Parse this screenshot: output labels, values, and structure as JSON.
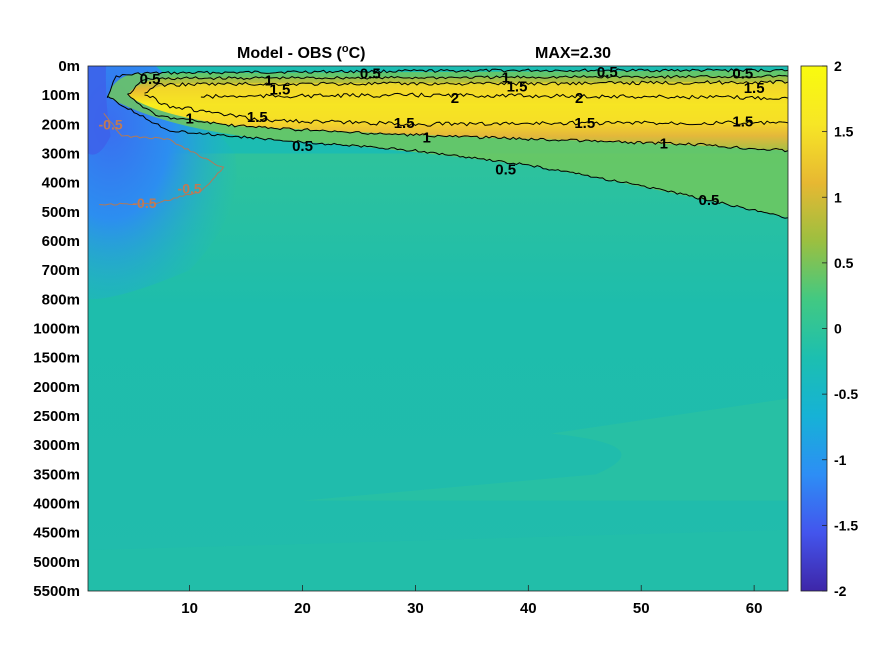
{
  "chart_data": {
    "type": "heatmap",
    "title": "Model - OBS (",
    "title_unit_sup": "o",
    "title_unit_tail": "C)",
    "max_label": "MAX=2.30",
    "xlabel": "",
    "ylabel": "",
    "x_ticks": [
      "10",
      "20",
      "30",
      "40",
      "50",
      "60"
    ],
    "x_tick_values": [
      10,
      20,
      30,
      40,
      50,
      60
    ],
    "xlim": [
      1,
      63
    ],
    "y_ticks": [
      "0m",
      "100m",
      "200m",
      "300m",
      "400m",
      "500m",
      "600m",
      "700m",
      "800m",
      "1000m",
      "1500m",
      "2000m",
      "2500m",
      "3000m",
      "3500m",
      "4000m",
      "4500m",
      "5000m",
      "5500m"
    ],
    "colorbar": {
      "ticks": [
        "2",
        "1.5",
        "1",
        "0.5",
        "0",
        "-0.5",
        "-1",
        "-1.5",
        "-2"
      ],
      "tick_values": [
        2,
        1.5,
        1,
        0.5,
        0,
        -0.5,
        -1,
        -1.5,
        -2
      ],
      "range": [
        -2,
        2
      ],
      "colors": [
        "#3e26a8",
        "#4355ed",
        "#2d8ef5",
        "#16b2d6",
        "#1cbfb0",
        "#42c982",
        "#9cbf40",
        "#e7b832",
        "#f7e626",
        "#f9fb0e"
      ]
    },
    "contour_labels": [
      {
        "text": "0.5",
        "x": 6.5,
        "y_level": 0.45
      },
      {
        "text": "1",
        "x": 17,
        "y_level": 0.5
      },
      {
        "text": "1.5",
        "x": 18,
        "y_level": 0.8
      },
      {
        "text": "0.5",
        "x": 26,
        "y_level": 0.25
      },
      {
        "text": "2",
        "x": 33.5,
        "y_level": 1.1
      },
      {
        "text": "1",
        "x": 38,
        "y_level": 0.4
      },
      {
        "text": "1.5",
        "x": 39,
        "y_level": 0.7
      },
      {
        "text": "2",
        "x": 44.5,
        "y_level": 1.1
      },
      {
        "text": "0.5",
        "x": 47,
        "y_level": 0.2
      },
      {
        "text": "0.5",
        "x": 59,
        "y_level": 0.25
      },
      {
        "text": "1.5",
        "x": 60,
        "y_level": 0.75
      },
      {
        "text": "1",
        "x": 10,
        "y_level": 1.8
      },
      {
        "text": "1.5",
        "x": 16,
        "y_level": 1.75
      },
      {
        "text": "1.5",
        "x": 29,
        "y_level": 1.95
      },
      {
        "text": "1",
        "x": 31,
        "y_level": 2.45
      },
      {
        "text": "1.5",
        "x": 45,
        "y_level": 1.95
      },
      {
        "text": "1.5",
        "x": 59,
        "y_level": 1.9
      },
      {
        "text": "1",
        "x": 52,
        "y_level": 2.65
      },
      {
        "text": "0.5",
        "x": 20,
        "y_level": 2.75
      },
      {
        "text": "0.5",
        "x": 38,
        "y_level": 3.55
      },
      {
        "text": "0.5",
        "x": 56,
        "y_level": 4.6
      }
    ],
    "negative_contour_labels": [
      {
        "text": "-0.5",
        "x": 3,
        "y_level": 2.0
      },
      {
        "text": "-0.5",
        "x": 6,
        "y_level": 4.7
      },
      {
        "text": "-0.5",
        "x": 10,
        "y_level": 4.2
      }
    ]
  }
}
